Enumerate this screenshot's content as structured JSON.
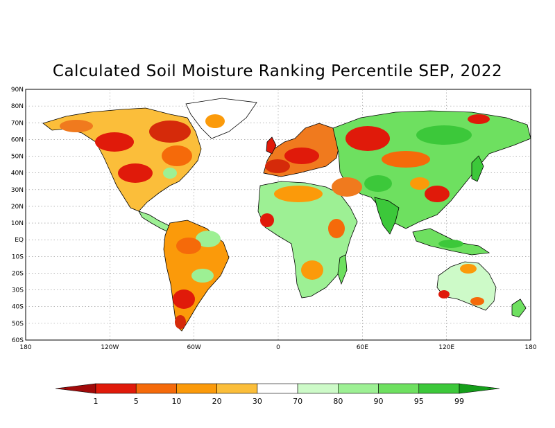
{
  "title": "Calculated Soil Moisture Ranking Percentile SEP, 2022",
  "lat_labels": [
    "90N",
    "80N",
    "70N",
    "60N",
    "50N",
    "40N",
    "30N",
    "20N",
    "10N",
    "EQ",
    "10S",
    "20S",
    "30S",
    "40S",
    "50S",
    "60S"
  ],
  "lon_labels": [
    "180",
    "120W",
    "60W",
    "0",
    "60E",
    "120E",
    "180"
  ],
  "colorbar": {
    "labels": [
      "1",
      "5",
      "10",
      "20",
      "30",
      "70",
      "80",
      "90",
      "95",
      "99"
    ],
    "colors": [
      "#a10a0a",
      "#e01a0a",
      "#f56a0a",
      "#fb9a0a",
      "#fbbe3a",
      "#ffffff",
      "#cdfac8",
      "#9df094",
      "#6ee060",
      "#3cc83a",
      "#159e1a"
    ]
  },
  "legend_colors": {
    "very_dry": "#d52a0a",
    "dry": "#f07a1e",
    "moderately_dry": "#fbbe3a",
    "normal": "#ffffff",
    "moderately_wet": "#b8f2b0",
    "wet": "#6ee060",
    "very_wet": "#3cc83a"
  }
}
